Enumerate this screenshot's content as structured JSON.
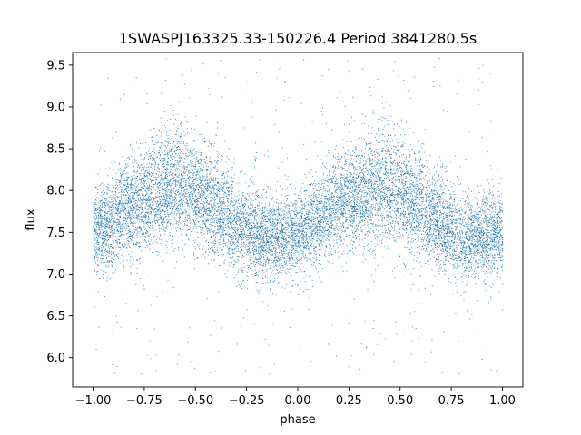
{
  "chart_data": {
    "type": "scatter",
    "title": "1SWASPJ163325.33-150226.4 Period 3841280.5s",
    "xlabel": "phase",
    "ylabel": "flux",
    "xlim": [
      -1.1,
      1.1
    ],
    "ylim": [
      5.65,
      9.65
    ],
    "x_ticks": [
      -1.0,
      -0.75,
      -0.5,
      -0.25,
      0.0,
      0.25,
      0.5,
      0.75,
      1.0
    ],
    "x_tick_labels": [
      "−1.00",
      "−0.75",
      "−0.50",
      "−0.25",
      "0.00",
      "0.25",
      "0.50",
      "0.75",
      "1.00"
    ],
    "y_ticks": [
      6.0,
      6.5,
      7.0,
      7.5,
      8.0,
      8.5,
      9.0,
      9.5
    ],
    "y_tick_labels": [
      "6.0",
      "6.5",
      "7.0",
      "7.5",
      "8.0",
      "8.5",
      "9.0",
      "9.5"
    ],
    "grid": false,
    "marker_color": "#1f77b4",
    "phase_range": [
      -1.0,
      1.0
    ],
    "flux_band_phase": [
      -1.0,
      -0.9,
      -0.8,
      -0.7,
      -0.6,
      -0.5,
      -0.4,
      -0.3,
      -0.2,
      -0.1,
      0.0,
      0.1,
      0.2,
      0.3,
      0.4,
      0.5,
      0.6,
      0.7,
      0.8,
      0.9,
      1.0
    ],
    "flux_band_center": [
      7.5,
      7.65,
      7.85,
      7.95,
      8.1,
      7.95,
      7.8,
      7.6,
      7.45,
      7.45,
      7.5,
      7.65,
      7.85,
      7.95,
      8.1,
      7.95,
      7.8,
      7.6,
      7.45,
      7.45,
      7.5
    ],
    "flux_band_spread": [
      0.25,
      0.28,
      0.3,
      0.32,
      0.35,
      0.32,
      0.3,
      0.28,
      0.26,
      0.26,
      0.25,
      0.28,
      0.3,
      0.32,
      0.35,
      0.32,
      0.3,
      0.28,
      0.26,
      0.26,
      0.25
    ],
    "outlier_range": [
      5.8,
      9.6
    ]
  }
}
